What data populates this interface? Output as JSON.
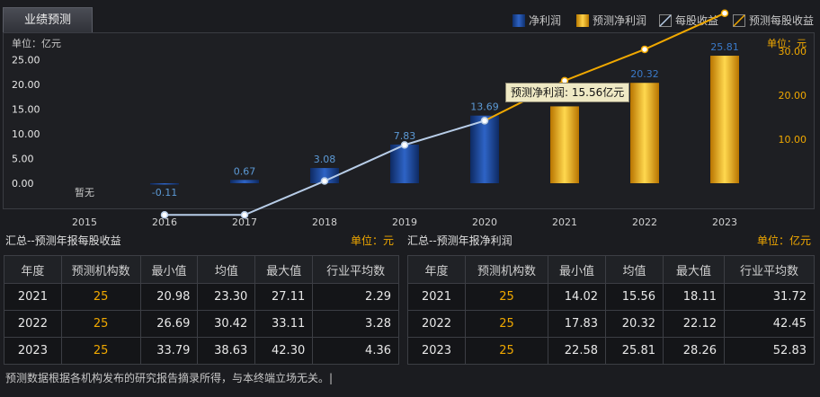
{
  "tab": {
    "label": "业绩预测"
  },
  "legend": [
    {
      "label": "净利润",
      "color": "#1e4b9e",
      "kind": "bar"
    },
    {
      "label": "预测净利润",
      "color": "#f0a800",
      "kind": "bar"
    },
    {
      "label": "每股收益",
      "color": "#b8cde8",
      "kind": "line"
    },
    {
      "label": "预测每股收益",
      "color": "#f0a800",
      "kind": "line"
    }
  ],
  "chart_data": {
    "type": "bar",
    "left_unit": "单位：亿元",
    "right_unit": "单位：元",
    "categories": [
      "2015",
      "2016",
      "2017",
      "2018",
      "2019",
      "2020",
      "2021",
      "2022",
      "2023"
    ],
    "y_ticks": [
      "25.00",
      "20.00",
      "15.00",
      "10.00",
      "5.00",
      "0.00"
    ],
    "y_right_ticks": [
      "30.00",
      "20.00",
      "10.00"
    ],
    "ylim": [
      0,
      27.5
    ],
    "series": [
      {
        "name": "净利润",
        "values": [
          null,
          -0.11,
          0.67,
          3.08,
          7.83,
          13.69,
          null,
          null,
          null
        ]
      },
      {
        "name": "预测净利润",
        "values": [
          null,
          null,
          null,
          null,
          null,
          null,
          15.56,
          20.32,
          25.81
        ]
      }
    ],
    "value_labels": [
      "暂无",
      "-0.11",
      "0.67",
      "3.08",
      "7.83",
      "13.69",
      "",
      "20.32",
      "25.81"
    ],
    "eps_series": [
      {
        "name": "每股收益",
        "values": [
          null,
          -7.2,
          -7.2,
          0.5,
          8.7,
          14.2,
          null,
          null,
          null
        ]
      },
      {
        "name": "预测每股收益",
        "values": [
          null,
          null,
          null,
          null,
          null,
          14.2,
          23.3,
          30.42,
          38.63
        ]
      }
    ],
    "tooltip": "预测净利润: 15.56亿元"
  },
  "eps_table": {
    "title": "汇总--预测年报每股收益",
    "unit": "单位：元",
    "headers": [
      "年度",
      "预测机构数",
      "最小值",
      "均值",
      "最大值",
      "行业平均数"
    ],
    "rows": [
      [
        "2021",
        "25",
        "20.98",
        "23.30",
        "27.11",
        "2.29"
      ],
      [
        "2022",
        "25",
        "26.69",
        "30.42",
        "33.11",
        "3.28"
      ],
      [
        "2023",
        "25",
        "33.79",
        "38.63",
        "42.30",
        "4.36"
      ]
    ]
  },
  "profit_table": {
    "title": "汇总--预测年报净利润",
    "unit": "单位：亿元",
    "headers": [
      "年度",
      "预测机构数",
      "最小值",
      "均值",
      "最大值",
      "行业平均数"
    ],
    "rows": [
      [
        "2021",
        "25",
        "14.02",
        "15.56",
        "18.11",
        "31.72"
      ],
      [
        "2022",
        "25",
        "17.83",
        "20.32",
        "22.12",
        "42.45"
      ],
      [
        "2023",
        "25",
        "22.58",
        "25.81",
        "28.26",
        "52.83"
      ]
    ]
  },
  "footnote": "预测数据根据各机构发布的研究报告摘录所得，与本终端立场无关。|"
}
